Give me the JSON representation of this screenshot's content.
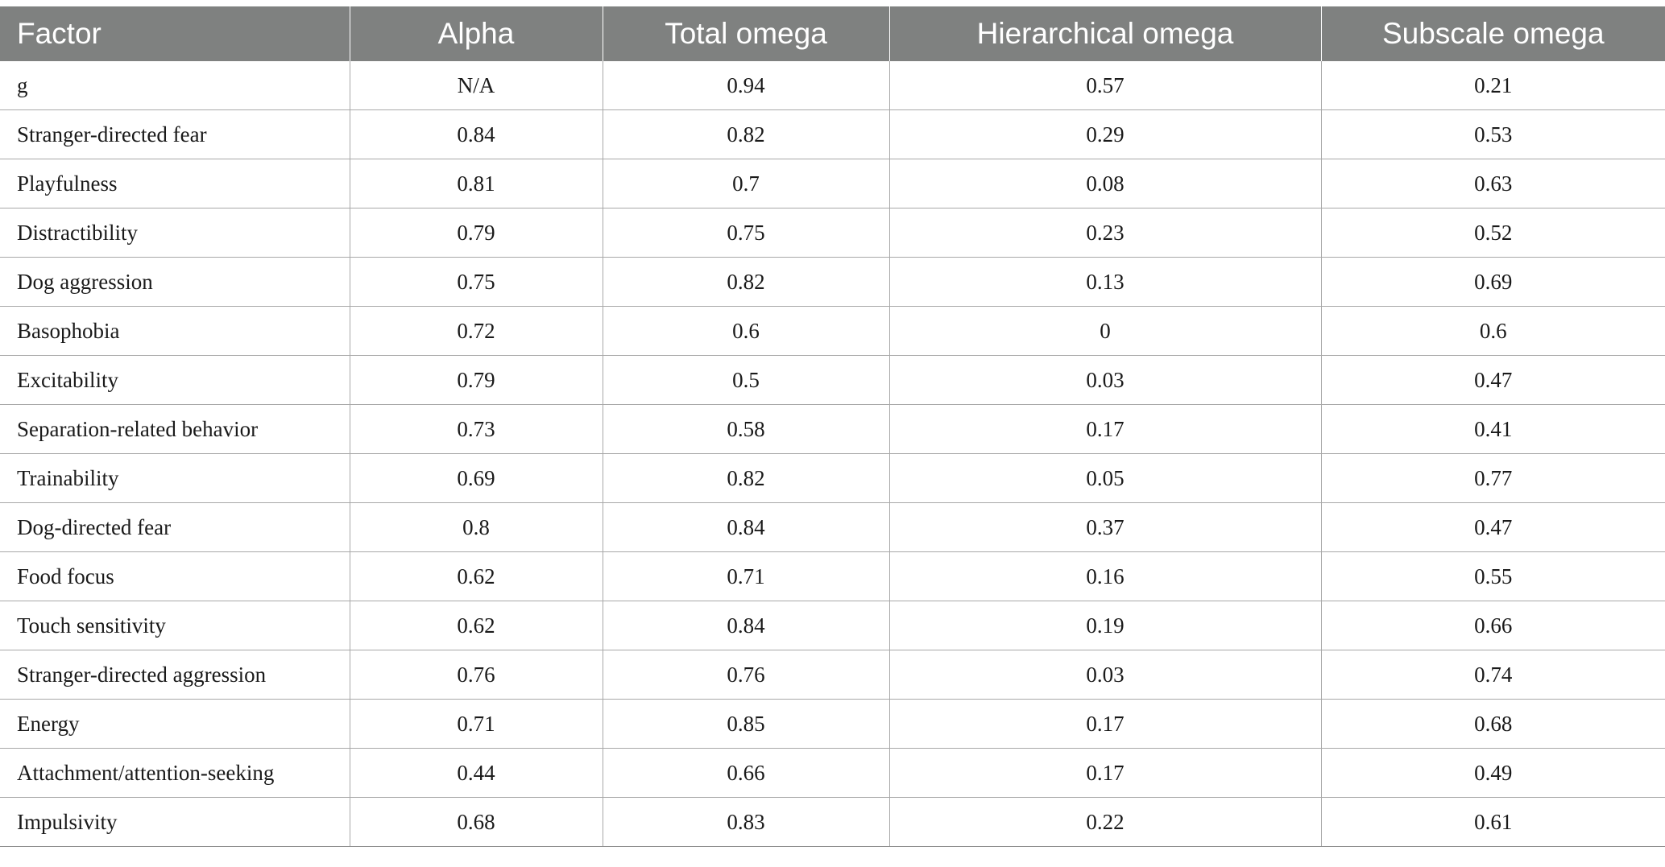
{
  "table": {
    "headers": [
      "Factor",
      "Alpha",
      "Total omega",
      "Hierarchical omega",
      "Subscale omega"
    ],
    "rows": [
      [
        "g",
        "N/A",
        "0.94",
        "0.57",
        "0.21"
      ],
      [
        "Stranger-directed fear",
        "0.84",
        "0.82",
        "0.29",
        "0.53"
      ],
      [
        "Playfulness",
        "0.81",
        "0.7",
        "0.08",
        "0.63"
      ],
      [
        "Distractibility",
        "0.79",
        "0.75",
        "0.23",
        "0.52"
      ],
      [
        "Dog aggression",
        "0.75",
        "0.82",
        "0.13",
        "0.69"
      ],
      [
        "Basophobia",
        "0.72",
        "0.6",
        "0",
        "0.6"
      ],
      [
        "Excitability",
        "0.79",
        "0.5",
        "0.03",
        "0.47"
      ],
      [
        "Separation-related behavior",
        "0.73",
        "0.58",
        "0.17",
        "0.41"
      ],
      [
        "Trainability",
        "0.69",
        "0.82",
        "0.05",
        "0.77"
      ],
      [
        "Dog-directed fear",
        "0.8",
        "0.84",
        "0.37",
        "0.47"
      ],
      [
        "Food focus",
        "0.62",
        "0.71",
        "0.16",
        "0.55"
      ],
      [
        "Touch sensitivity",
        "0.62",
        "0.84",
        "0.19",
        "0.66"
      ],
      [
        "Stranger-directed aggression",
        "0.76",
        "0.76",
        "0.03",
        "0.74"
      ],
      [
        "Energy",
        "0.71",
        "0.85",
        "0.17",
        "0.68"
      ],
      [
        "Attachment/attention-seeking",
        "0.44",
        "0.66",
        "0.17",
        "0.49"
      ],
      [
        "Impulsivity",
        "0.68",
        "0.83",
        "0.22",
        "0.61"
      ]
    ]
  },
  "colors": {
    "header_bg": "#7f8180",
    "header_text": "#ffffff",
    "grid_line": "#a8a8a8",
    "body_text": "#1a1a1a"
  }
}
